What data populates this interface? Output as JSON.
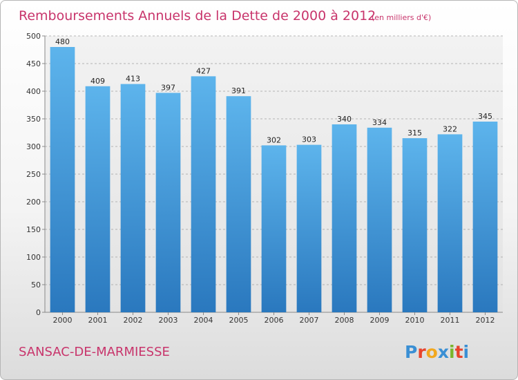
{
  "chart_data": {
    "type": "bar",
    "title": "Remboursements Annuels de la Dette de 2000 à 2012",
    "subtitle": "(en milliers d'€)",
    "categories": [
      "2000",
      "2001",
      "2002",
      "2003",
      "2004",
      "2005",
      "2006",
      "2007",
      "2008",
      "2009",
      "2010",
      "2011",
      "2012"
    ],
    "values": [
      480,
      409,
      413,
      397,
      427,
      391,
      302,
      303,
      340,
      334,
      315,
      322,
      345
    ],
    "ylim": [
      0,
      500
    ],
    "yticks": [
      0,
      50,
      100,
      150,
      200,
      250,
      300,
      350,
      400,
      450,
      500
    ],
    "xlabel": "",
    "ylabel": "",
    "grid": true
  },
  "footer": {
    "commune": "SANSAC-DE-MARMIESSE",
    "logo_letters": [
      "P",
      "r",
      "o",
      "x",
      "i",
      "t",
      "i"
    ]
  },
  "colors": {
    "bar_top": "#5db4ec",
    "bar_bottom": "#2a78be",
    "accent": "#c8346b",
    "grid": "#a0a0a0",
    "logo": [
      "#3a8fd4",
      "#e8442c",
      "#f2a81f",
      "#3a8fd4",
      "#7ab52b",
      "#e8442c",
      "#3a8fd4"
    ]
  }
}
